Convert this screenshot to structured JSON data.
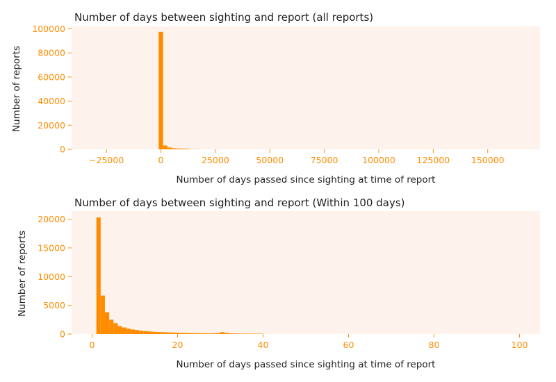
{
  "colors": {
    "plot_background": "#fdf2ec",
    "bar": "#ff8c00",
    "tick": "#ff8c00",
    "text": "#222222"
  },
  "chart_data": [
    {
      "type": "bar",
      "title": "Number of days between sighting and report (all reports)",
      "xlabel": "Number of days passed since sighting at time of report",
      "ylabel": "Number of reports",
      "xlim": [
        -41000,
        174000
      ],
      "ylim": [
        0,
        102000
      ],
      "xticks": [
        -25000,
        0,
        25000,
        50000,
        75000,
        100000,
        125000,
        150000
      ],
      "xtick_labels": [
        "−25000",
        "0",
        "25000",
        "50000",
        "75000",
        "100000",
        "125000",
        "150000"
      ],
      "yticks": [
        0,
        20000,
        40000,
        60000,
        80000,
        100000
      ],
      "ytick_labels": [
        "0",
        "20000",
        "40000",
        "60000",
        "80000",
        "100000"
      ],
      "bin_width": 2000,
      "bins": [
        {
          "x0": -1000,
          "x1": 1000,
          "value": 97500
        },
        {
          "x0": 1000,
          "x1": 3000,
          "value": 3200
        },
        {
          "x0": 3000,
          "x1": 5000,
          "value": 1500
        },
        {
          "x0": 5000,
          "x1": 7000,
          "value": 900
        },
        {
          "x0": 7000,
          "x1": 9000,
          "value": 700
        },
        {
          "x0": 9000,
          "x1": 11000,
          "value": 600
        },
        {
          "x0": 11000,
          "x1": 13000,
          "value": 500
        },
        {
          "x0": 13000,
          "x1": 15000,
          "value": 150
        },
        {
          "x0": 15000,
          "x1": 17000,
          "value": 80
        },
        {
          "x0": 17000,
          "x1": 19000,
          "value": 40
        }
      ],
      "grid": false
    },
    {
      "type": "bar",
      "title": "Number of days between sighting and report (Within 100 days)",
      "xlabel": "Number of days passed since sighting at time of report",
      "ylabel": "Number of reports",
      "xlim": [
        -4.8,
        104.8
      ],
      "ylim": [
        0,
        21400
      ],
      "xticks": [
        0,
        20,
        40,
        60,
        80,
        100
      ],
      "xtick_labels": [
        "0",
        "20",
        "40",
        "60",
        "80",
        "100"
      ],
      "yticks": [
        0,
        5000,
        10000,
        15000,
        20000
      ],
      "ytick_labels": [
        "0",
        "5000",
        "10000",
        "15000",
        "20000"
      ],
      "bin_width": 1,
      "bins": [
        {
          "x0": 1,
          "x1": 2,
          "value": 20300
        },
        {
          "x0": 2,
          "x1": 3,
          "value": 6700
        },
        {
          "x0": 3,
          "x1": 4,
          "value": 3800
        },
        {
          "x0": 4,
          "x1": 5,
          "value": 2500
        },
        {
          "x0": 5,
          "x1": 6,
          "value": 1900
        },
        {
          "x0": 6,
          "x1": 7,
          "value": 1400
        },
        {
          "x0": 7,
          "x1": 8,
          "value": 1150
        },
        {
          "x0": 8,
          "x1": 9,
          "value": 950
        },
        {
          "x0": 9,
          "x1": 10,
          "value": 800
        },
        {
          "x0": 10,
          "x1": 11,
          "value": 700
        },
        {
          "x0": 11,
          "x1": 12,
          "value": 600
        },
        {
          "x0": 12,
          "x1": 13,
          "value": 520
        },
        {
          "x0": 13,
          "x1": 14,
          "value": 450
        },
        {
          "x0": 14,
          "x1": 15,
          "value": 400
        },
        {
          "x0": 15,
          "x1": 16,
          "value": 360
        },
        {
          "x0": 16,
          "x1": 17,
          "value": 330
        },
        {
          "x0": 17,
          "x1": 18,
          "value": 300
        },
        {
          "x0": 18,
          "x1": 19,
          "value": 270
        },
        {
          "x0": 19,
          "x1": 20,
          "value": 250
        },
        {
          "x0": 20,
          "x1": 21,
          "value": 230
        },
        {
          "x0": 21,
          "x1": 22,
          "value": 210
        },
        {
          "x0": 22,
          "x1": 23,
          "value": 190
        },
        {
          "x0": 23,
          "x1": 24,
          "value": 170
        },
        {
          "x0": 24,
          "x1": 25,
          "value": 160
        },
        {
          "x0": 25,
          "x1": 26,
          "value": 150
        },
        {
          "x0": 26,
          "x1": 27,
          "value": 140
        },
        {
          "x0": 27,
          "x1": 28,
          "value": 130
        },
        {
          "x0": 28,
          "x1": 29,
          "value": 150
        },
        {
          "x0": 29,
          "x1": 30,
          "value": 170
        },
        {
          "x0": 30,
          "x1": 31,
          "value": 330
        },
        {
          "x0": 31,
          "x1": 32,
          "value": 210
        },
        {
          "x0": 32,
          "x1": 33,
          "value": 120
        },
        {
          "x0": 33,
          "x1": 34,
          "value": 100
        },
        {
          "x0": 34,
          "x1": 35,
          "value": 90
        },
        {
          "x0": 35,
          "x1": 36,
          "value": 85
        },
        {
          "x0": 36,
          "x1": 37,
          "value": 80
        },
        {
          "x0": 37,
          "x1": 38,
          "value": 75
        },
        {
          "x0": 38,
          "x1": 39,
          "value": 70
        },
        {
          "x0": 39,
          "x1": 40,
          "value": 65
        }
      ],
      "grid": false
    }
  ]
}
